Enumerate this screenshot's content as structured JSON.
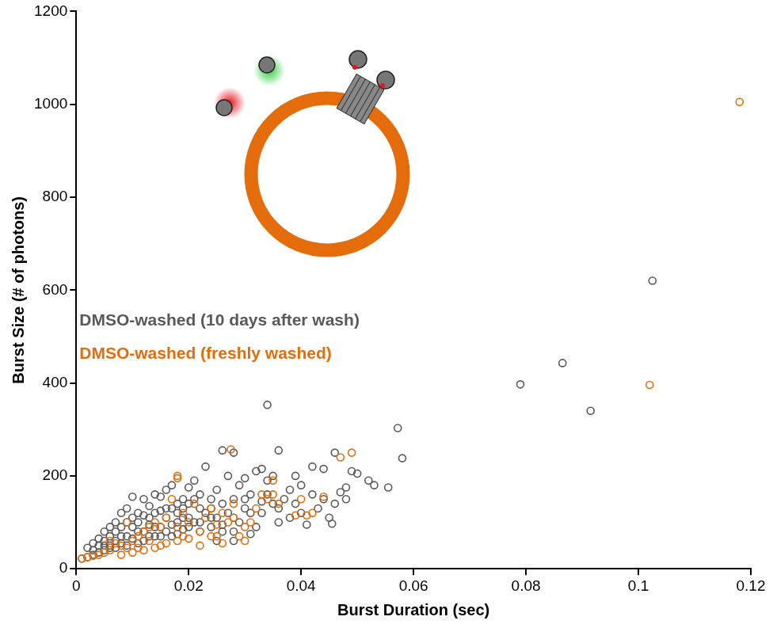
{
  "chart_data": {
    "type": "scatter",
    "x_label": "Burst Duration (sec)",
    "y_label": "Burst Size (# of photons)",
    "xlim": [
      0,
      0.12
    ],
    "xticks": [
      0,
      0.02,
      0.04,
      0.06,
      0.08,
      0.1,
      0.12
    ],
    "ylim": [
      0,
      1200
    ],
    "yticks": [
      0,
      200,
      400,
      600,
      800,
      1000,
      1200
    ],
    "grid": false,
    "legend": "left",
    "marker": "open_circle",
    "series": [
      {
        "name": "DMSO-washed (10 days after wash)",
        "color": "#595959",
        "x": [
          0.1025,
          0.0865,
          0.079,
          0.0915,
          0.034,
          0.0572,
          0.058,
          0.0555,
          0.053,
          0.052,
          0.05,
          0.049,
          0.048,
          0.048,
          0.0455,
          0.046,
          0.044,
          0.042,
          0.04,
          0.039,
          0.038,
          0.036,
          0.035,
          0.034,
          0.033,
          0.032,
          0.031,
          0.03,
          0.029,
          0.028,
          0.027,
          0.026,
          0.025,
          0.024,
          0.023,
          0.022,
          0.021,
          0.02,
          0.019,
          0.018,
          0.017,
          0.016,
          0.015,
          0.014,
          0.013,
          0.012,
          0.011,
          0.01,
          0.009,
          0.008,
          0.007,
          0.006,
          0.005,
          0.004,
          0.003,
          0.002,
          0.045,
          0.043,
          0.041,
          0.04,
          0.038,
          0.036,
          0.035,
          0.033,
          0.032,
          0.03,
          0.029,
          0.028,
          0.027,
          0.026,
          0.025,
          0.024,
          0.023,
          0.022,
          0.021,
          0.02,
          0.019,
          0.018,
          0.017,
          0.016,
          0.015,
          0.014,
          0.013,
          0.012,
          0.011,
          0.01,
          0.009,
          0.008,
          0.007,
          0.006,
          0.005,
          0.004,
          0.003,
          0.002,
          0.001,
          0.005,
          0.006,
          0.007,
          0.008,
          0.009,
          0.01,
          0.011,
          0.012,
          0.013,
          0.014,
          0.015,
          0.016,
          0.017,
          0.018,
          0.019,
          0.02,
          0.021,
          0.022,
          0.024,
          0.026,
          0.028,
          0.03,
          0.034,
          0.037,
          0.042,
          0.044,
          0.003,
          0.004,
          0.005,
          0.006,
          0.007,
          0.008,
          0.009,
          0.01,
          0.011,
          0.012,
          0.013,
          0.014,
          0.015,
          0.016,
          0.017,
          0.018,
          0.019,
          0.02,
          0.022,
          0.024,
          0.026,
          0.028,
          0.031,
          0.033,
          0.036,
          0.039,
          0.046,
          0.047,
          0.028,
          0.025,
          0.031
        ],
        "values": [
          620,
          443,
          397,
          340,
          353,
          303,
          238,
          175,
          180,
          190,
          205,
          210,
          175,
          150,
          97,
          250,
          215,
          220,
          180,
          200,
          170,
          255,
          200,
          190,
          215,
          210,
          160,
          195,
          180,
          250,
          200,
          255,
          170,
          150,
          220,
          160,
          190,
          175,
          150,
          140,
          180,
          170,
          155,
          160,
          135,
          150,
          120,
          155,
          130,
          120,
          100,
          90,
          80,
          65,
          55,
          45,
          110,
          130,
          95,
          120,
          110,
          100,
          140,
          120,
          90,
          130,
          100,
          80,
          120,
          95,
          110,
          90,
          120,
          80,
          100,
          110,
          85,
          100,
          70,
          110,
          90,
          70,
          95,
          60,
          80,
          90,
          70,
          55,
          60,
          50,
          40,
          35,
          30,
          25,
          22,
          60,
          70,
          80,
          90,
          100,
          110,
          100,
          115,
          110,
          120,
          125,
          130,
          130,
          120,
          130,
          140,
          150,
          130,
          130,
          140,
          150,
          150,
          160,
          150,
          160,
          150,
          40,
          50,
          50,
          45,
          45,
          70,
          50,
          65,
          55,
          80,
          70,
          90,
          70,
          80,
          95,
          75,
          110,
          90,
          100,
          110,
          80,
          110,
          120,
          145,
          130,
          140,
          140,
          165,
          60,
          60,
          75
        ]
      },
      {
        "name": "DMSO-washed (freshly washed)",
        "color": "#e46c0a",
        "x": [
          0.118,
          0.102,
          0.049,
          0.0275,
          0.018,
          0.018,
          0.044,
          0.042,
          0.041,
          0.035,
          0.034,
          0.033,
          0.032,
          0.031,
          0.03,
          0.029,
          0.028,
          0.027,
          0.026,
          0.025,
          0.024,
          0.023,
          0.022,
          0.021,
          0.02,
          0.019,
          0.018,
          0.017,
          0.016,
          0.015,
          0.014,
          0.013,
          0.012,
          0.011,
          0.01,
          0.009,
          0.008,
          0.007,
          0.006,
          0.005,
          0.004,
          0.003,
          0.002,
          0.001,
          0.012,
          0.014,
          0.016,
          0.018,
          0.02,
          0.022,
          0.024,
          0.026,
          0.03,
          0.035,
          0.036,
          0.039,
          0.047,
          0.04,
          0.008,
          0.01,
          0.015,
          0.006,
          0.009,
          0.011,
          0.013,
          0.019,
          0.025,
          0.028
        ],
        "values": [
          1005,
          396,
          250,
          257,
          200,
          195,
          155,
          120,
          115,
          190,
          150,
          160,
          130,
          100,
          90,
          70,
          110,
          100,
          120,
          95,
          130,
          110,
          80,
          140,
          100,
          120,
          90,
          150,
          110,
          90,
          100,
          60,
          80,
          70,
          60,
          100,
          50,
          55,
          40,
          35,
          30,
          28,
          25,
          22,
          40,
          45,
          55,
          60,
          65,
          50,
          70,
          55,
          60,
          160,
          140,
          115,
          240,
          150,
          30,
          35,
          50,
          60,
          45,
          45,
          90,
          70,
          70,
          140
        ]
      }
    ]
  }
}
